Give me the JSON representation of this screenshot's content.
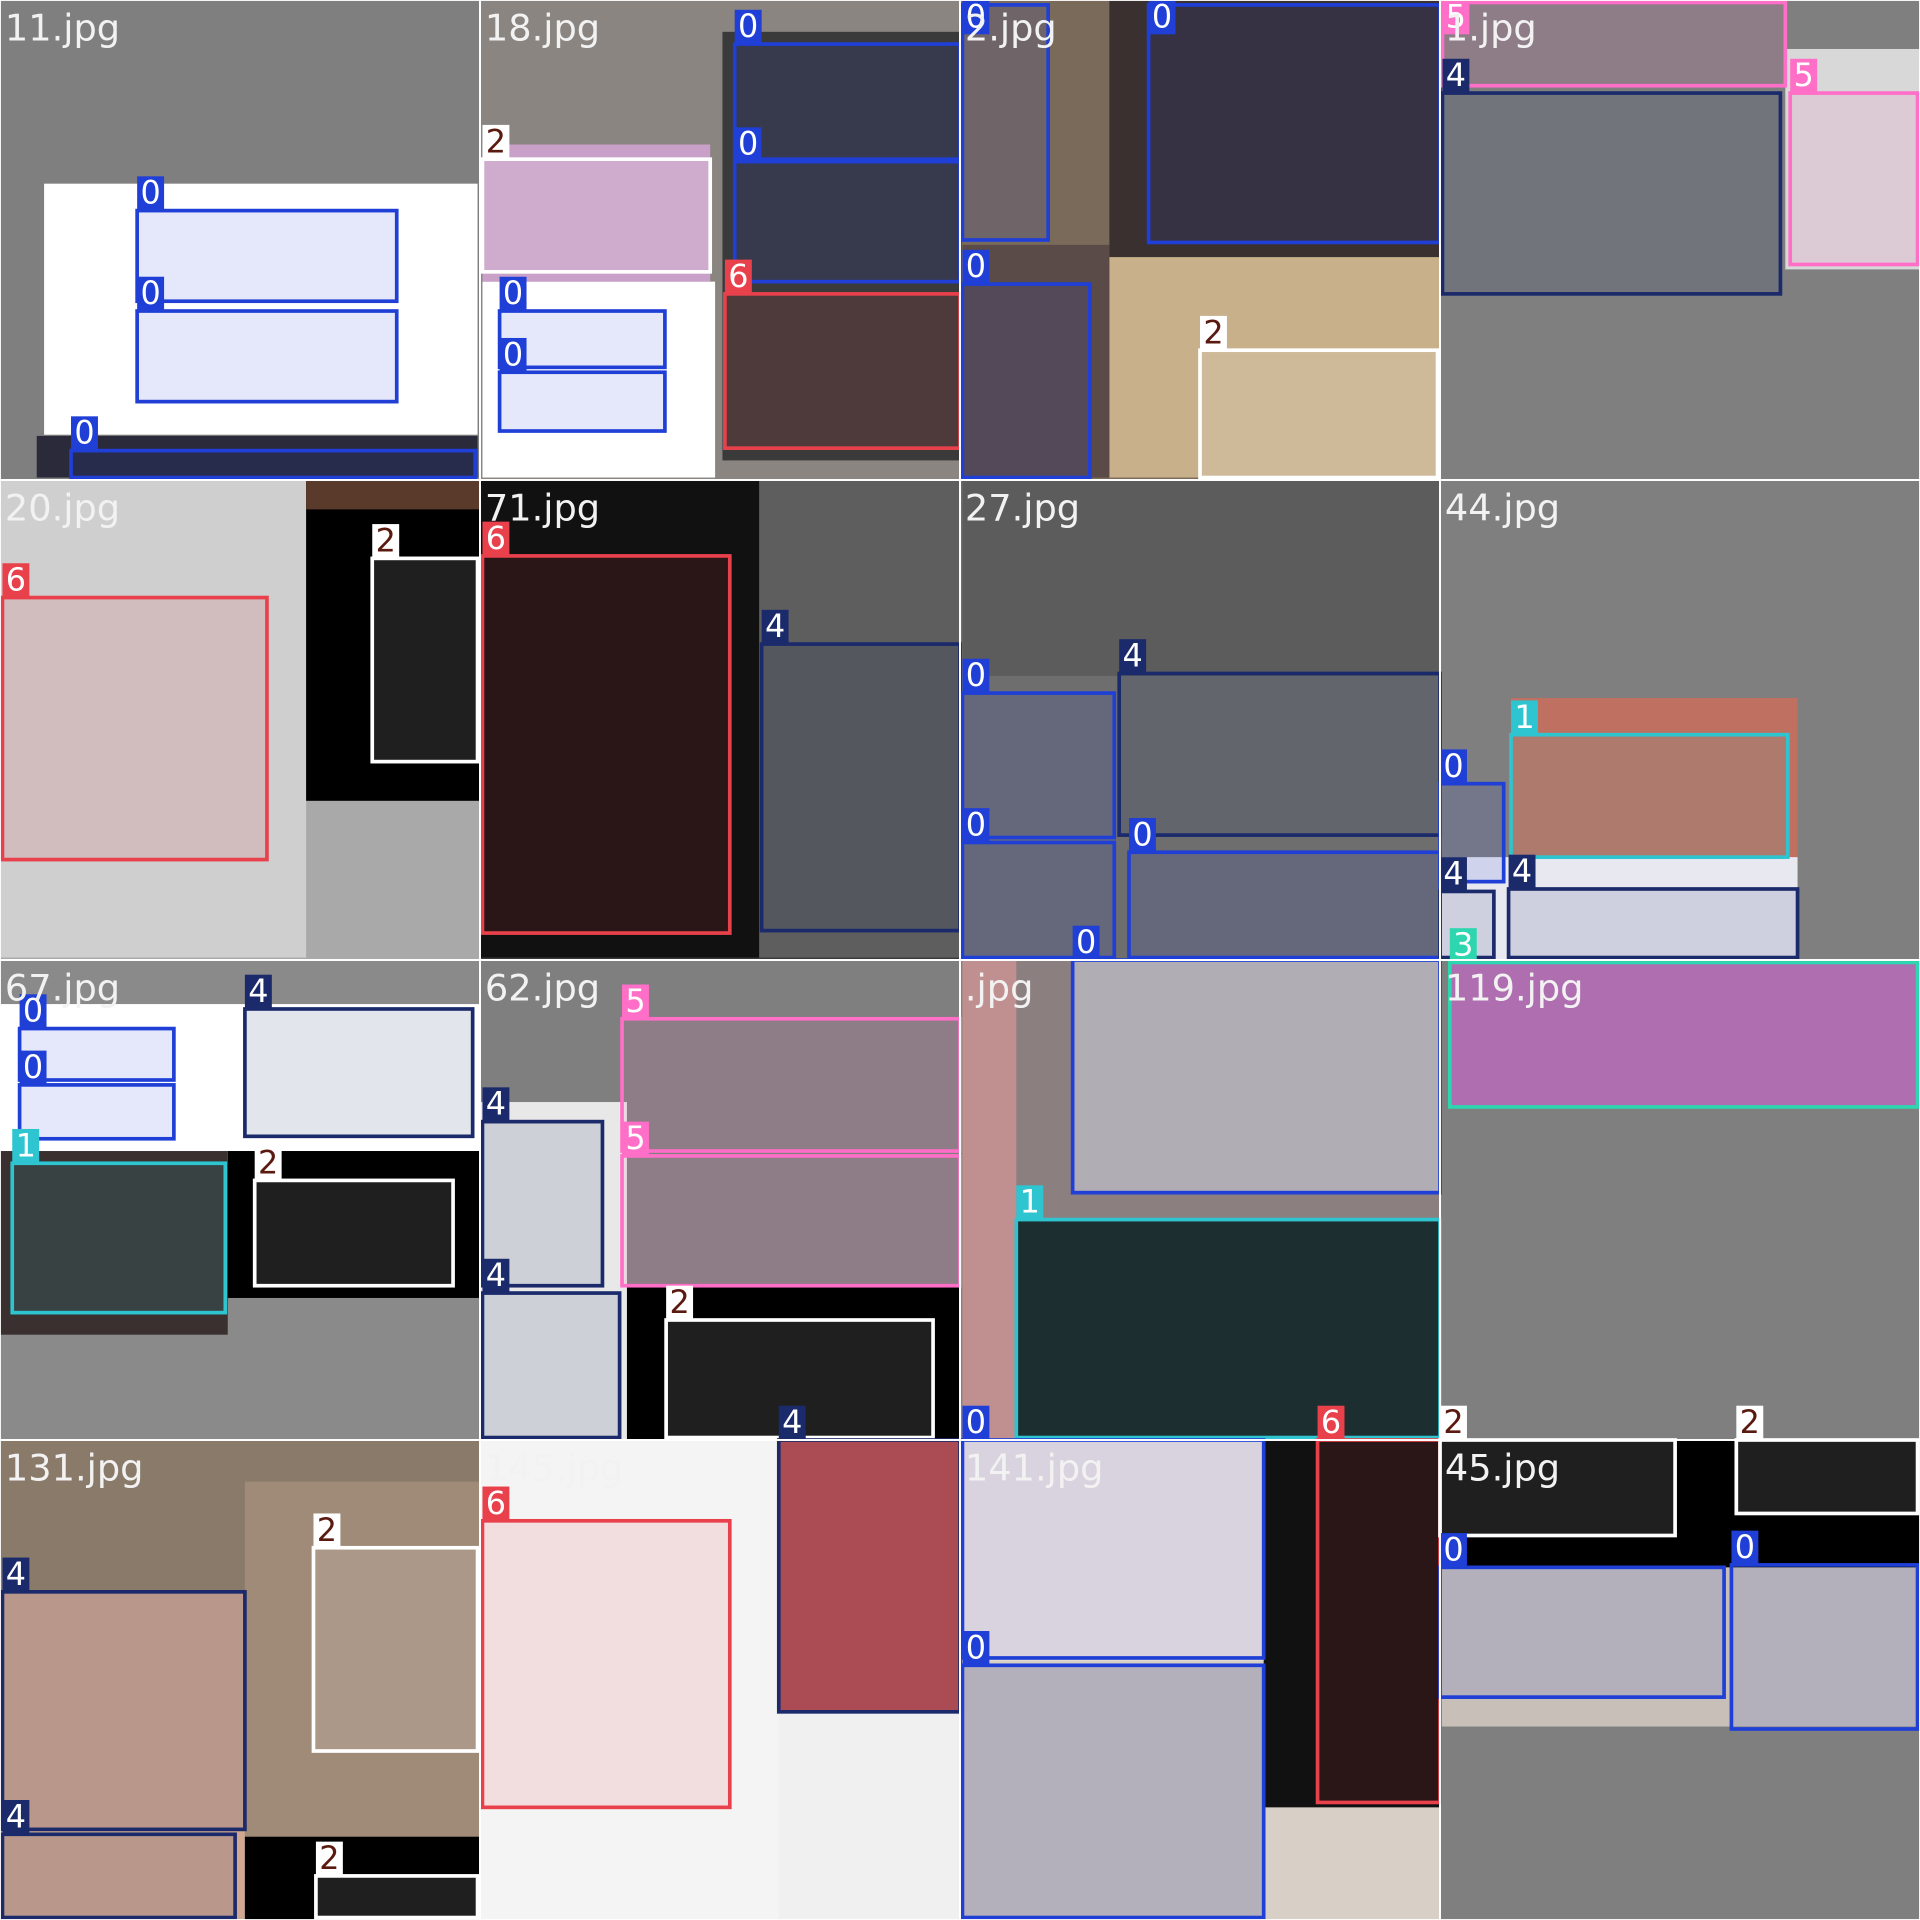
{
  "tiles": [
    {
      "name": "11.jpg",
      "boxes": [
        0,
        0,
        0
      ]
    },
    {
      "name": "18.jpg",
      "boxes": [
        0,
        2,
        0,
        6,
        0,
        0
      ]
    },
    {
      "name": "2.jpg",
      "boxes": [
        0,
        0,
        0,
        2
      ]
    },
    {
      "name": "1.jpg",
      "boxes": [
        5,
        4,
        5
      ]
    },
    {
      "name": "20.jpg",
      "boxes": [
        6,
        2
      ]
    },
    {
      "name": "71.jpg",
      "boxes": [
        6,
        4
      ]
    },
    {
      "name": "27.jpg",
      "boxes": [
        0,
        4,
        0,
        0
      ]
    },
    {
      "name": "44.jpg",
      "boxes": [
        1,
        0,
        4,
        4
      ]
    },
    {
      "name": "67.jpg",
      "boxes": [
        0,
        0,
        4,
        1,
        2
      ]
    },
    {
      "name": "62.jpg",
      "boxes": [
        5,
        4,
        5,
        4,
        2
      ]
    },
    {
      "name": ".jpg",
      "boxes": [
        0,
        1
      ]
    },
    {
      "name": "119.jpg",
      "boxes": [
        3
      ]
    },
    {
      "name": "131.jpg",
      "boxes": [
        4,
        2,
        4,
        2
      ]
    },
    {
      "name": "145.jpg",
      "boxes": [
        6,
        4
      ]
    },
    {
      "name": "141.jpg",
      "boxes": [
        0,
        0,
        6
      ]
    },
    {
      "name": "45.jpg",
      "boxes": [
        2,
        2,
        0,
        0
      ]
    }
  ]
}
